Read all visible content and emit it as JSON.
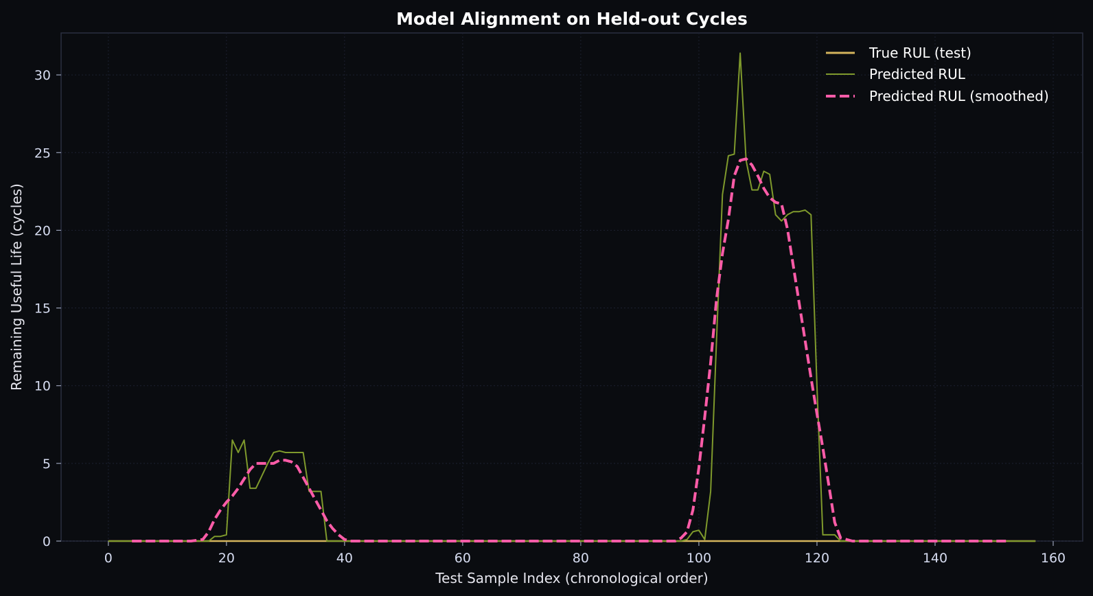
{
  "chart_data": {
    "type": "line",
    "title": "Model Alignment on Held-out Cycles",
    "xlabel": "Test Sample Index (chronological order)",
    "ylabel": "Remaining Useful Life (cycles)",
    "xlim": [
      -8,
      165
    ],
    "ylim": [
      0,
      32.7
    ],
    "xticks": [
      0,
      20,
      40,
      60,
      80,
      100,
      120,
      140,
      160
    ],
    "yticks": [
      0,
      5,
      10,
      15,
      20,
      25,
      30
    ],
    "grid": true,
    "legend_position": "top-right",
    "series": [
      {
        "name": "True RUL (test)",
        "color": "#d4b45c",
        "style": "solid",
        "x": [
          0,
          157
        ],
        "y": [
          0,
          0
        ]
      },
      {
        "name": "Predicted RUL",
        "color": "#7f9a2c",
        "style": "solid",
        "x": [
          0,
          17,
          18,
          19,
          20,
          21,
          22,
          23,
          24,
          25,
          26,
          27,
          28,
          29,
          30,
          31,
          32,
          33,
          34,
          35,
          36,
          37,
          38,
          97,
          98,
          99,
          100,
          101,
          102,
          103,
          104,
          105,
          106,
          107,
          108,
          109,
          110,
          111,
          112,
          113,
          114,
          115,
          116,
          117,
          118,
          119,
          120,
          121,
          122,
          123,
          124,
          157
        ],
        "y": [
          0,
          0,
          0.3,
          0.3,
          0.4,
          6.5,
          5.7,
          6.5,
          3.4,
          3.4,
          4.2,
          5.0,
          5.7,
          5.8,
          5.7,
          5.7,
          5.7,
          5.7,
          3.2,
          3.2,
          3.2,
          0,
          0,
          0,
          0.1,
          0.6,
          0.7,
          0.1,
          3.2,
          13.0,
          22.3,
          24.8,
          24.9,
          31.4,
          24.5,
          22.6,
          22.6,
          23.8,
          23.6,
          21.0,
          20.6,
          21.0,
          21.2,
          21.2,
          21.3,
          21.0,
          10.0,
          0.4,
          0.4,
          0.4,
          0,
          0
        ]
      },
      {
        "name": "Predicted RUL (smoothed)",
        "color": "#ff5ca8",
        "style": "dashed",
        "x": [
          4,
          14,
          16,
          17,
          18,
          19,
          20,
          21,
          22,
          23,
          24,
          25,
          26,
          27,
          28,
          29,
          30,
          31,
          32,
          33,
          34,
          35,
          36,
          37,
          38,
          39,
          40,
          41,
          42,
          96,
          97,
          98,
          99,
          100,
          101,
          102,
          103,
          104,
          105,
          106,
          107,
          108,
          109,
          110,
          111,
          112,
          113,
          114,
          115,
          116,
          117,
          118,
          119,
          120,
          121,
          122,
          123,
          124,
          125,
          126,
          152
        ],
        "y": [
          0,
          0,
          0.1,
          0.6,
          1.4,
          2.0,
          2.5,
          2.9,
          3.4,
          4.0,
          4.6,
          5.0,
          5.0,
          5.0,
          5.0,
          5.2,
          5.2,
          5.1,
          4.8,
          4.1,
          3.4,
          2.7,
          2.0,
          1.3,
          0.8,
          0.4,
          0.1,
          0,
          0,
          0,
          0.2,
          0.6,
          2.0,
          4.7,
          8.0,
          11.5,
          15.6,
          18.5,
          20.7,
          23.5,
          24.5,
          24.6,
          24.2,
          23.5,
          22.7,
          22.1,
          21.8,
          21.7,
          20.1,
          17.7,
          15.3,
          12.9,
          10.5,
          8.2,
          6.0,
          3.6,
          1.2,
          0.2,
          0.1,
          0,
          0
        ]
      }
    ]
  }
}
